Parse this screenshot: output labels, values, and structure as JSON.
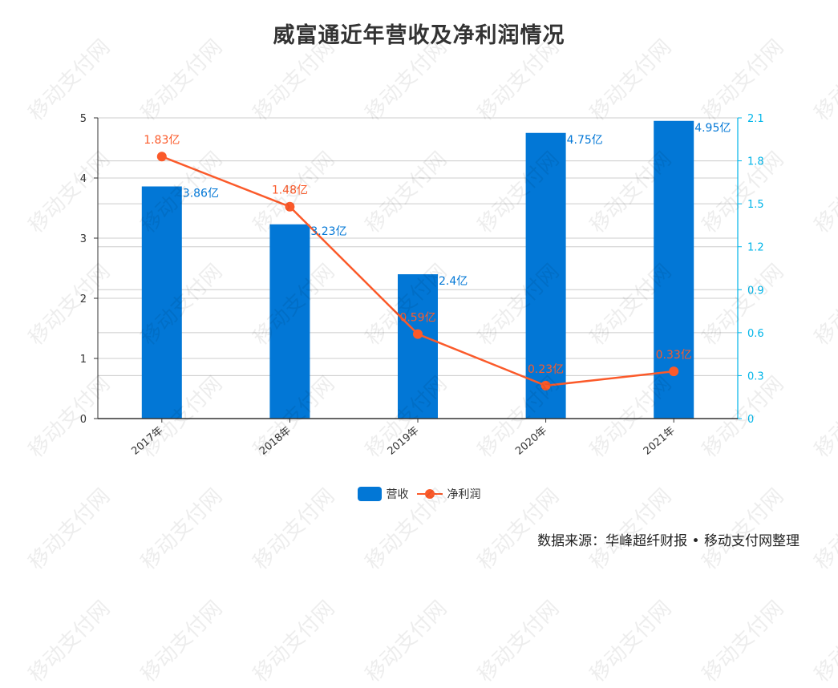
{
  "title": "威富通近年营收及净利润情况",
  "source": "数据来源：华峰超纤财报 • 移动支付网整理",
  "watermark": "移动支付网",
  "colors": {
    "bar": "#0277d6",
    "line": "#fb5a2a",
    "right_axis": "#00b5e9",
    "bar_label": "#0277d6"
  },
  "legend": [
    {
      "label": "营收",
      "type": "bar"
    },
    {
      "label": "净利润",
      "type": "line"
    }
  ],
  "chart_data": {
    "type": "bar+line",
    "title": "威富通近年营收及净利润情况",
    "categories": [
      "2017年",
      "2018年",
      "2019年",
      "2020年",
      "2021年"
    ],
    "series": [
      {
        "name": "营收",
        "type": "bar",
        "axis": "left",
        "values": [
          3.86,
          3.23,
          2.4,
          4.75,
          4.95
        ],
        "labels": [
          "3.86亿",
          "3.23亿",
          "2.4亿",
          "4.75亿",
          "4.95亿"
        ]
      },
      {
        "name": "净利润",
        "type": "line",
        "axis": "right",
        "values": [
          1.83,
          1.48,
          0.59,
          0.23,
          0.33
        ],
        "labels": [
          "1.83亿",
          "1.48亿",
          "0.59亿",
          "0.23亿",
          "0.33亿"
        ]
      }
    ],
    "left_axis": {
      "ticks": [
        "0",
        "1",
        "2",
        "3",
        "4",
        "5"
      ],
      "ylim": [
        0,
        5
      ]
    },
    "right_axis": {
      "ticks": [
        "0",
        "0.3",
        "0.6",
        "0.9",
        "1.2",
        "1.5",
        "1.8",
        "2.1"
      ],
      "ylim": [
        0,
        2.1
      ]
    },
    "xlabel": "",
    "ylabel": "",
    "grid": true,
    "legend_position": "bottom"
  }
}
